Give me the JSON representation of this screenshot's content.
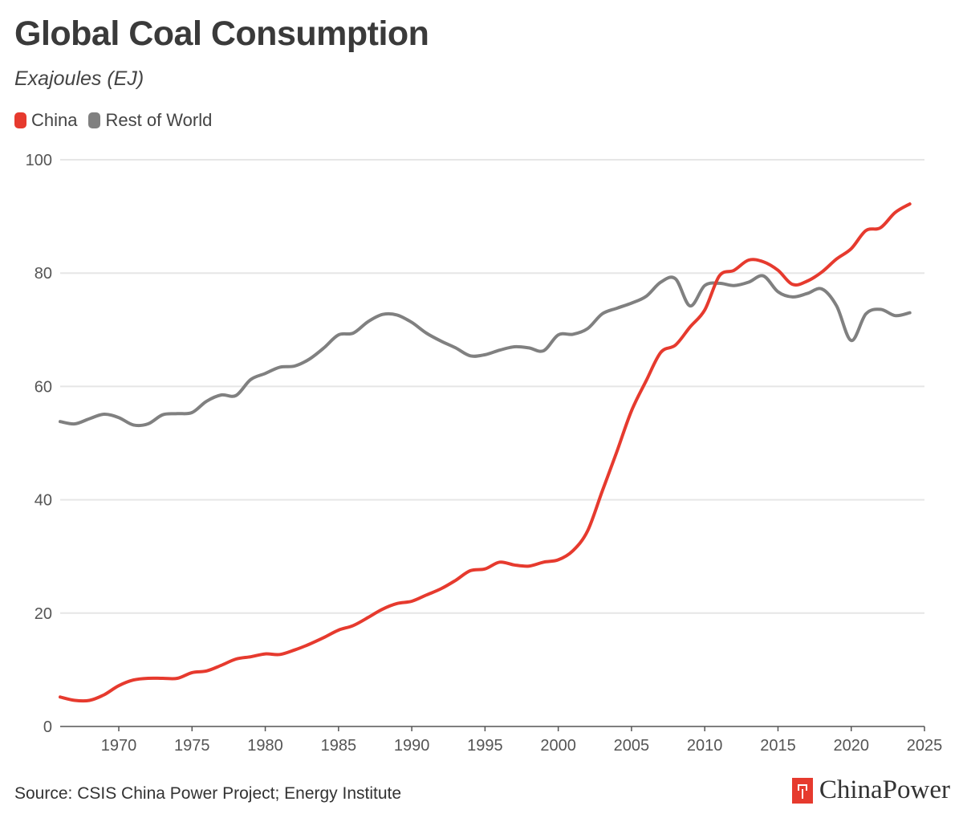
{
  "header": {
    "title": "Global Coal Consumption",
    "subtitle": "Exajoules (EJ)"
  },
  "legend": [
    {
      "label": "China",
      "color": "#e63a2e"
    },
    {
      "label": "Rest of World",
      "color": "#808080"
    }
  ],
  "footer": {
    "source": "Source: CSIS China Power Project; Energy Institute",
    "brand": "ChinaPower"
  },
  "chart_data": {
    "type": "line",
    "title": "Global Coal Consumption",
    "subtitle": "Exajoules (EJ)",
    "xlim": [
      1966,
      2025
    ],
    "ylim": [
      0,
      100
    ],
    "x_ticks": [
      1970,
      1975,
      1980,
      1985,
      1990,
      1995,
      2000,
      2005,
      2010,
      2015,
      2020,
      2025
    ],
    "y_ticks": [
      0,
      20,
      40,
      60,
      80,
      100
    ],
    "grid": "horizontal",
    "legend_position": "top-left",
    "x": [
      1966,
      1967,
      1968,
      1969,
      1970,
      1971,
      1972,
      1973,
      1974,
      1975,
      1976,
      1977,
      1978,
      1979,
      1980,
      1981,
      1982,
      1983,
      1984,
      1985,
      1986,
      1987,
      1988,
      1989,
      1990,
      1991,
      1992,
      1993,
      1994,
      1995,
      1996,
      1997,
      1998,
      1999,
      2000,
      2001,
      2002,
      2003,
      2004,
      2005,
      2006,
      2007,
      2008,
      2009,
      2010,
      2011,
      2012,
      2013,
      2014,
      2015,
      2016,
      2017,
      2018,
      2019,
      2020,
      2021,
      2022,
      2023,
      2024
    ],
    "series": [
      {
        "name": "China",
        "color": "#e63a2e",
        "values": [
          5.2,
          4.6,
          4.6,
          5.6,
          7.2,
          8.2,
          8.5,
          8.5,
          8.5,
          9.5,
          9.8,
          10.8,
          11.9,
          12.3,
          12.8,
          12.7,
          13.5,
          14.5,
          15.7,
          17.0,
          17.8,
          19.2,
          20.7,
          21.7,
          22.1,
          23.2,
          24.3,
          25.8,
          27.5,
          27.8,
          29.0,
          28.5,
          28.3,
          29.0,
          29.4,
          31.0,
          34.5,
          41.5,
          48.5,
          55.7,
          61.0,
          66.0,
          67.3,
          70.5,
          73.5,
          79.5,
          80.5,
          82.3,
          82.0,
          80.5,
          78.0,
          78.6,
          80.2,
          82.5,
          84.3,
          87.5,
          88.0,
          90.7,
          92.2
        ]
      },
      {
        "name": "Rest of World",
        "color": "#808080",
        "values": [
          53.8,
          53.4,
          54.3,
          55.1,
          54.5,
          53.2,
          53.4,
          55.0,
          55.2,
          55.4,
          57.4,
          58.5,
          58.4,
          61.2,
          62.3,
          63.4,
          63.6,
          64.8,
          66.8,
          69.1,
          69.4,
          71.4,
          72.7,
          72.6,
          71.3,
          69.4,
          68.0,
          66.8,
          65.4,
          65.6,
          66.4,
          67.0,
          66.8,
          66.3,
          69.1,
          69.2,
          70.2,
          72.8,
          73.8,
          74.7,
          75.9,
          78.4,
          79.0,
          74.2,
          77.8,
          78.2,
          77.8,
          78.4,
          79.5,
          76.7,
          75.8,
          76.4,
          77.2,
          74.2,
          68.1,
          72.8,
          73.6,
          72.5,
          73.0
        ]
      }
    ]
  }
}
